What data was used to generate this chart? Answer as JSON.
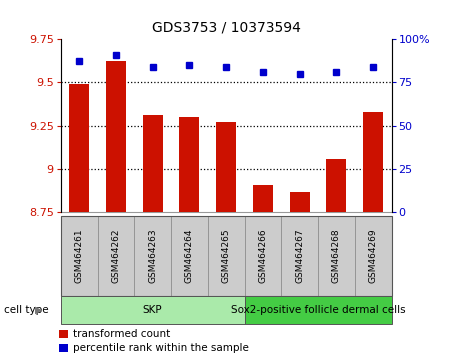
{
  "title": "GDS3753 / 10373594",
  "samples": [
    "GSM464261",
    "GSM464262",
    "GSM464263",
    "GSM464264",
    "GSM464265",
    "GSM464266",
    "GSM464267",
    "GSM464268",
    "GSM464269"
  ],
  "bar_values": [
    9.49,
    9.62,
    9.31,
    9.3,
    9.27,
    8.91,
    8.87,
    9.06,
    9.33
  ],
  "dot_values": [
    87,
    91,
    84,
    85,
    84,
    81,
    80,
    81,
    84
  ],
  "ylim_left": [
    8.75,
    9.75
  ],
  "ylim_right": [
    0,
    100
  ],
  "yticks_left": [
    8.75,
    9.0,
    9.25,
    9.5,
    9.75
  ],
  "yticks_right": [
    0,
    25,
    50,
    75,
    100
  ],
  "ytick_labels_left": [
    "8.75",
    "9",
    "9.25",
    "9.5",
    "9.75"
  ],
  "ytick_labels_right": [
    "0",
    "25",
    "50",
    "75",
    "100%"
  ],
  "hlines": [
    9.5,
    9.25,
    9.0
  ],
  "bar_color": "#cc1100",
  "dot_color": "#0000cc",
  "cell_type_groups": [
    {
      "label": "SKP",
      "start": 0,
      "end": 4,
      "color": "#aaeaaa"
    },
    {
      "label": "Sox2-positive follicle dermal cells",
      "start": 5,
      "end": 8,
      "color": "#44cc44"
    }
  ],
  "cell_type_label": "cell type",
  "legend_bar_label": "transformed count",
  "legend_dot_label": "percentile rank within the sample",
  "bar_width": 0.55,
  "tick_area_bg": "#cccccc",
  "plot_bg_color": "#ffffff"
}
